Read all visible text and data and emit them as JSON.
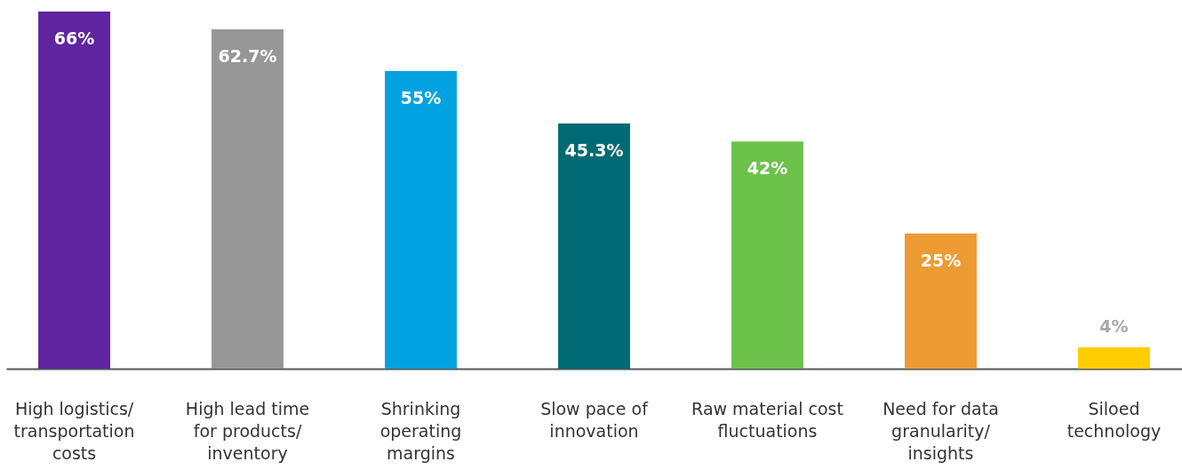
{
  "chart_data": {
    "type": "bar",
    "categories": [
      "High logistics/\ntransportation\ncosts",
      "High lead time\nfor products/\ninventory",
      "Shrinking\noperating\nmargins",
      "Slow pace of\ninnovation",
      "Raw material cost\nfluctuations",
      "Need for data\ngranularity/\ninsights",
      "Siloed\ntechnology"
    ],
    "values": [
      66,
      62.7,
      55,
      45.3,
      42,
      25,
      4
    ],
    "colors": [
      "#5f249f",
      "#979797",
      "#00a3e0",
      "#006a72",
      "#6cc24a",
      "#ed9b33",
      "#ffcd00"
    ],
    "value_labels": [
      "66%",
      "62.7%",
      "55%",
      "45.3%",
      "42%",
      "25%",
      "4%"
    ]
  }
}
